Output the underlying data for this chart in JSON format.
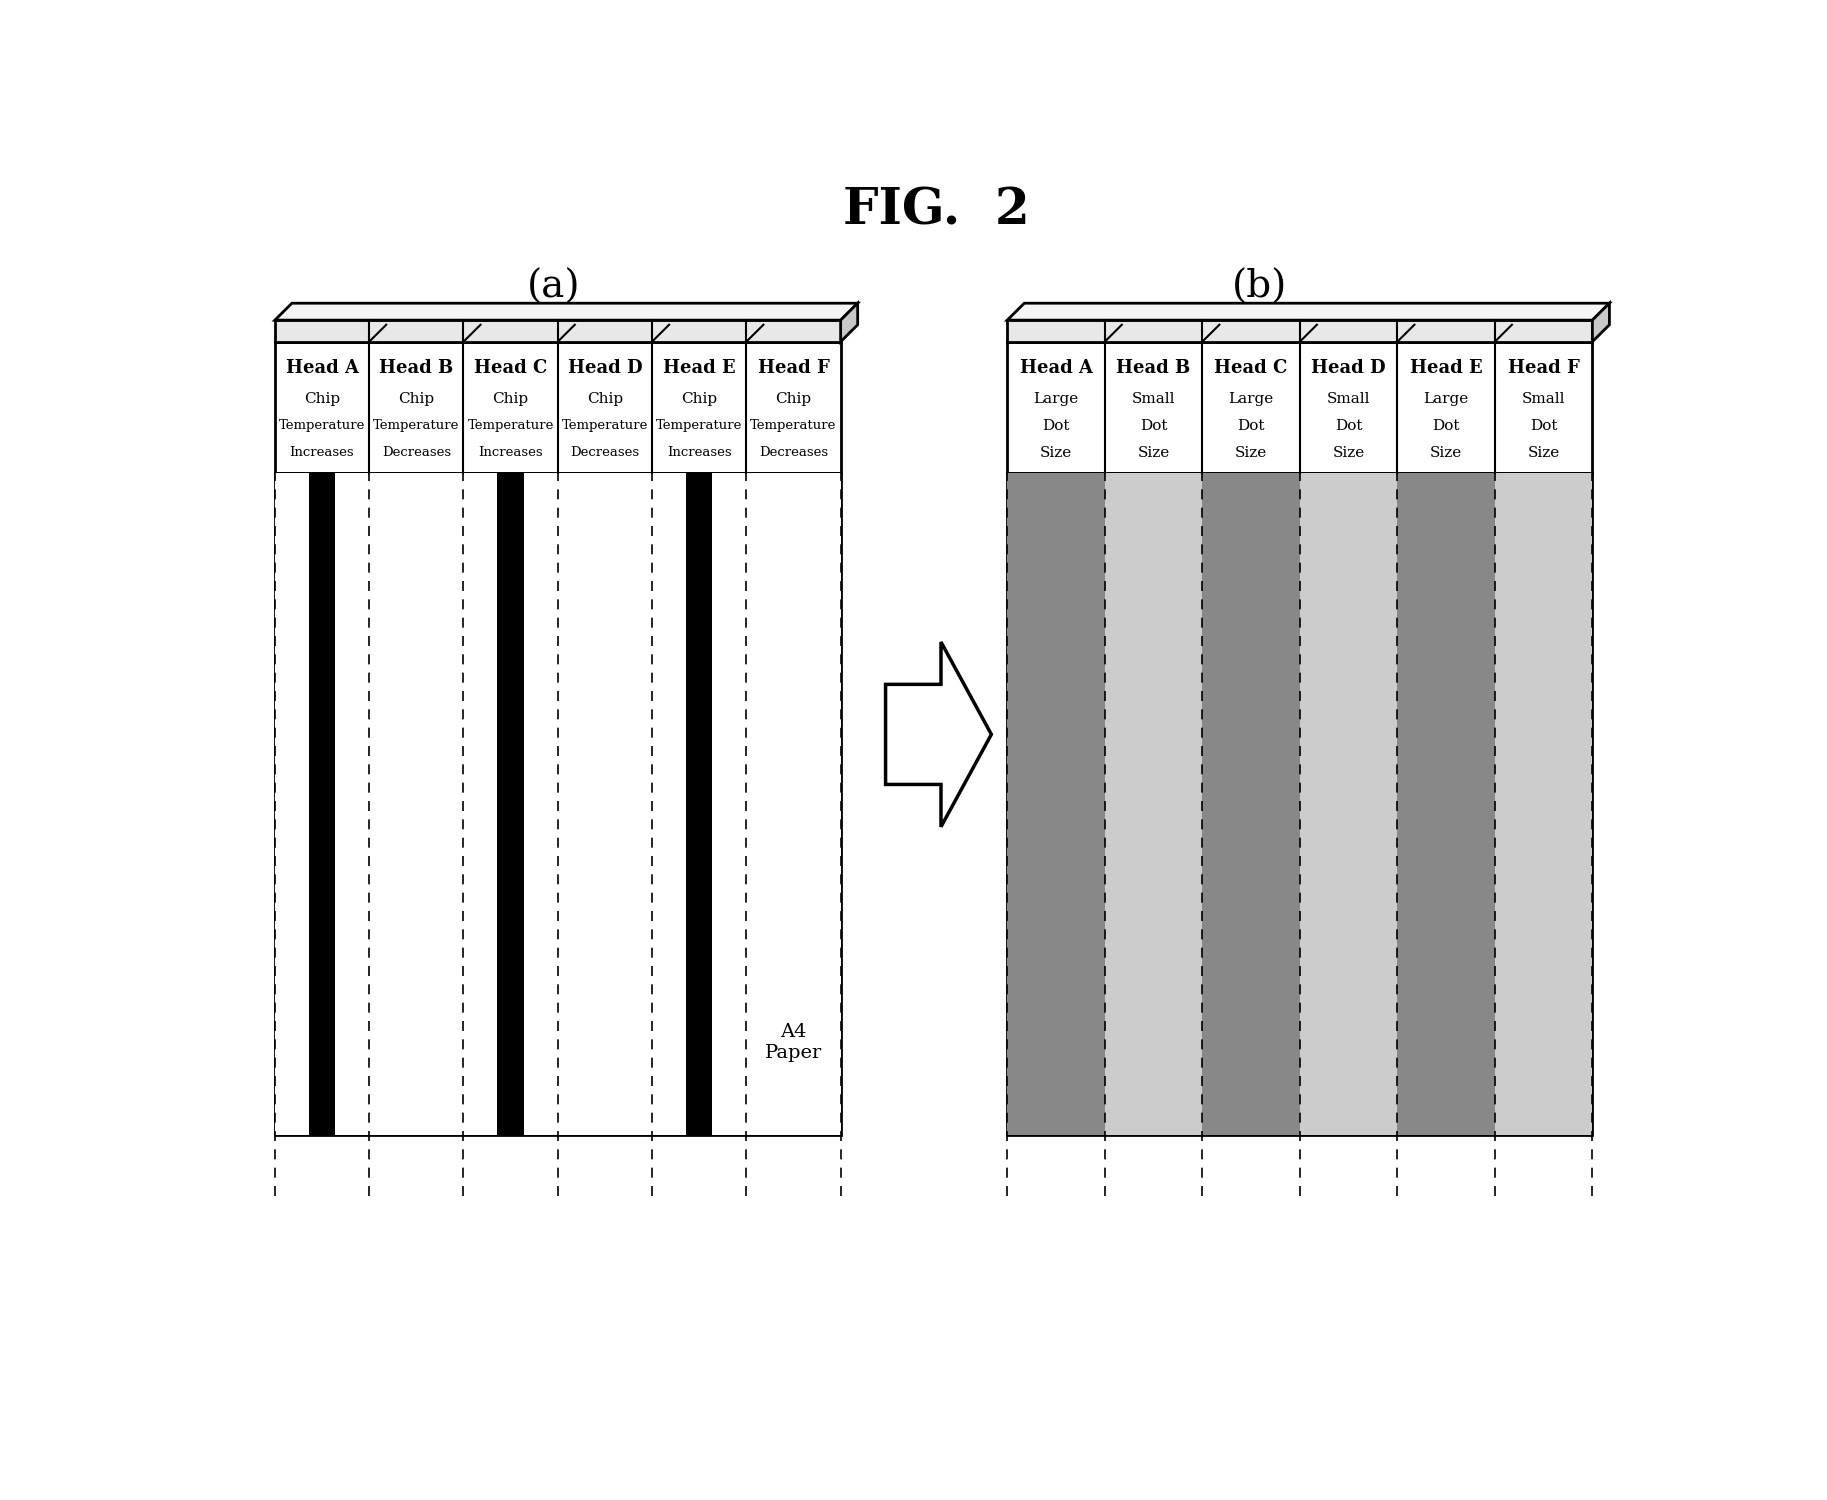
{
  "title": "FIG.  2",
  "label_a": "(a)",
  "label_b": "(b)",
  "heads": [
    "Head A",
    "Head B",
    "Head C",
    "Head D",
    "Head E",
    "Head F"
  ],
  "sub_labels_a": [
    [
      "Chip",
      "Temperature",
      "Increases"
    ],
    [
      "Chip",
      "Temperature",
      "Decreases"
    ],
    [
      "Chip",
      "Temperature",
      "Increases"
    ],
    [
      "Chip",
      "Temperature",
      "Decreases"
    ],
    [
      "Chip",
      "Temperature",
      "Increases"
    ],
    [
      "Chip",
      "Temperature",
      "Decreases"
    ]
  ],
  "sub_labels_b": [
    [
      "Large",
      "Dot",
      "Size"
    ],
    [
      "Small",
      "Dot",
      "Size"
    ],
    [
      "Large",
      "Dot",
      "Size"
    ],
    [
      "Small",
      "Dot",
      "Size"
    ],
    [
      "Large",
      "Dot",
      "Size"
    ],
    [
      "Small",
      "Dot",
      "Size"
    ]
  ],
  "a4_label": "A4\nPaper",
  "bg_color": "#ffffff"
}
